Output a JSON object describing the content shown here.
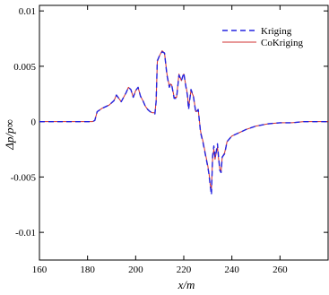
{
  "chart_data": {
    "type": "line",
    "xlabel": "x/m",
    "ylabel": "Δp/p∞",
    "xlim": [
      160,
      280
    ],
    "ylim": [
      -0.0125,
      0.0105
    ],
    "x_ticks": [
      160,
      180,
      200,
      220,
      240,
      260
    ],
    "y_ticks": [
      0.01,
      0.005,
      0,
      -0.005,
      -0.01
    ],
    "y_tick_labels": [
      "0.01",
      "0.005",
      "0",
      "-0.005",
      "-0.01"
    ],
    "legend_position": "top-right",
    "grid": false,
    "series": [
      {
        "name": "Kriging",
        "color": "#2323e0",
        "style": "dashed",
        "x": [
          160,
          182,
          183,
          184,
          186,
          189,
          191,
          192,
          193,
          194,
          196,
          197,
          198,
          199,
          200,
          201,
          202,
          203,
          204,
          205,
          206,
          207,
          208,
          208.5,
          209,
          210,
          211,
          212,
          213,
          214,
          214.5,
          215,
          216,
          217,
          218,
          219,
          220,
          221,
          221.5,
          222,
          223,
          224,
          225,
          226,
          227,
          228,
          229,
          230,
          230.5,
          231,
          231.5,
          232,
          232.5,
          233,
          233.5,
          234,
          234.5,
          235,
          235.5,
          236,
          237,
          238,
          240,
          243,
          246,
          250,
          255,
          260,
          265,
          270,
          275,
          280
        ],
        "y": [
          0,
          0,
          0.0001,
          0.0009,
          0.0012,
          0.0015,
          0.0019,
          0.0024,
          0.0021,
          0.0018,
          0.0026,
          0.0031,
          0.0029,
          0.0022,
          0.0028,
          0.0031,
          0.0023,
          0.0019,
          0.0014,
          0.0011,
          0.0009,
          0.0008,
          0.0007,
          0.0018,
          0.0055,
          0.006,
          0.0063,
          0.0062,
          0.0042,
          0.0031,
          0.0034,
          0.0033,
          0.0021,
          0.0021,
          0.0042,
          0.0037,
          0.0044,
          0.003,
          0.0024,
          0.0011,
          0.0029,
          0.0023,
          0.0008,
          0.0011,
          -0.001,
          -0.0019,
          -0.003,
          -0.0041,
          -0.0048,
          -0.0058,
          -0.0066,
          -0.0031,
          -0.0022,
          -0.0032,
          -0.0027,
          -0.002,
          -0.0033,
          -0.0044,
          -0.0046,
          -0.0032,
          -0.0029,
          -0.0018,
          -0.0013,
          -0.001,
          -0.0007,
          -0.0004,
          -0.0002,
          -0.0001,
          -0.0001,
          0,
          0,
          0
        ]
      },
      {
        "name": "CoKriging",
        "color": "#d03030",
        "style": "solid",
        "x": [
          160,
          182,
          183,
          184,
          186,
          189,
          191,
          192,
          193,
          194,
          196,
          197,
          198,
          199,
          200,
          201,
          202,
          203,
          204,
          205,
          206,
          207,
          208,
          208.5,
          209,
          210,
          211,
          212,
          213,
          214,
          214.5,
          215,
          216,
          217,
          218,
          219,
          220,
          221,
          221.5,
          222,
          223,
          224,
          225,
          226,
          227,
          228,
          229,
          230,
          230.5,
          231,
          231.5,
          232,
          232.5,
          233,
          233.5,
          234,
          234.5,
          235,
          235.5,
          236,
          237,
          238,
          240,
          243,
          246,
          250,
          255,
          260,
          265,
          270,
          275,
          280
        ],
        "y": [
          0,
          0,
          0.0001,
          0.0009,
          0.0012,
          0.0015,
          0.0019,
          0.0024,
          0.0021,
          0.0018,
          0.0026,
          0.0031,
          0.0029,
          0.0022,
          0.0028,
          0.0031,
          0.0023,
          0.0019,
          0.0014,
          0.0011,
          0.0009,
          0.0008,
          0.0008,
          0.0018,
          0.0054,
          0.006,
          0.0064,
          0.0062,
          0.0043,
          0.0032,
          0.0034,
          0.0033,
          0.0022,
          0.0022,
          0.0043,
          0.0037,
          0.0043,
          0.0031,
          0.0025,
          0.0013,
          0.0028,
          0.0023,
          0.0009,
          0.0011,
          -0.0009,
          -0.0018,
          -0.0029,
          -0.004,
          -0.0047,
          -0.0057,
          -0.006,
          -0.0033,
          -0.0025,
          -0.0034,
          -0.0028,
          -0.0023,
          -0.0034,
          -0.0043,
          -0.0045,
          -0.0032,
          -0.0028,
          -0.0018,
          -0.0013,
          -0.001,
          -0.0007,
          -0.0004,
          -0.0002,
          -0.0001,
          -0.0001,
          0,
          0,
          0
        ]
      }
    ]
  }
}
